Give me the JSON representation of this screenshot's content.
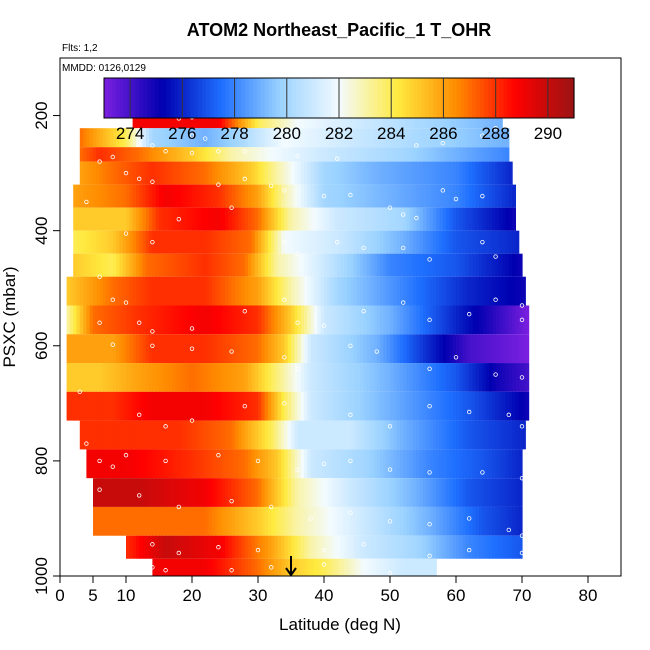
{
  "chart_data": {
    "type": "heatmap",
    "title": "ATOM2 Northeast_Pacific_1 T_OHR",
    "info_lines": [
      "Flts: 1,2",
      "MMDD: 0126,0129"
    ],
    "xlabel": "Latitude (deg N)",
    "ylabel": "PSXC (mbar)",
    "xlim": [
      0,
      85
    ],
    "ylim": [
      1000,
      100
    ],
    "x_ticks": [
      0,
      5,
      10,
      20,
      30,
      40,
      50,
      60,
      70,
      80
    ],
    "x_tick_labels": [
      "0",
      "5",
      "10",
      "20",
      "30",
      "40",
      "50",
      "60",
      "70",
      "80"
    ],
    "y_ticks": [
      200,
      400,
      600,
      800,
      1000
    ],
    "y_tick_labels": [
      "200",
      "400",
      "600",
      "800",
      "1000"
    ],
    "colorbar": {
      "range": [
        273,
        291
      ],
      "ticks": [
        274,
        276,
        278,
        280,
        282,
        284,
        286,
        288,
        290
      ],
      "tick_labels": [
        "274",
        "276",
        "278",
        "280",
        "282",
        "284",
        "286",
        "288",
        "290"
      ],
      "colors": [
        "#7b1fe0",
        "#0000b0",
        "#1e6fff",
        "#9ad2ff",
        "#f3fbff",
        "#ffea40",
        "#ff8c00",
        "#ff0000",
        "#9a1414"
      ]
    },
    "marker": {
      "x": 35,
      "label": "arrow"
    },
    "bands": [
      {
        "p_top": 190,
        "p_bot": 222,
        "x_start": 11,
        "x_end": 67,
        "knots": [
          [
            11,
            289
          ],
          [
            24,
            289
          ],
          [
            30,
            284
          ],
          [
            36,
            282
          ],
          [
            46,
            281
          ],
          [
            56,
            280
          ],
          [
            67,
            279
          ]
        ]
      },
      {
        "p_top": 222,
        "p_bot": 255,
        "x_start": 3,
        "x_end": 68,
        "knots": [
          [
            3,
            287
          ],
          [
            10,
            284
          ],
          [
            14,
            280
          ],
          [
            22,
            279
          ],
          [
            27,
            280
          ],
          [
            34,
            282
          ],
          [
            44,
            281
          ],
          [
            56,
            280
          ],
          [
            68,
            279
          ]
        ]
      },
      {
        "p_top": 255,
        "p_bot": 280,
        "x_start": 3,
        "x_end": 68,
        "knots": [
          [
            3,
            287
          ],
          [
            6,
            288
          ],
          [
            12,
            287
          ],
          [
            20,
            285
          ],
          [
            26,
            283
          ],
          [
            32,
            282
          ],
          [
            40,
            281
          ],
          [
            52,
            280
          ],
          [
            68,
            278
          ]
        ]
      },
      {
        "p_top": 280,
        "p_bot": 320,
        "x_start": 3,
        "x_end": 68.5,
        "knots": [
          [
            3,
            286
          ],
          [
            8,
            287
          ],
          [
            14,
            288
          ],
          [
            22,
            287
          ],
          [
            29,
            285
          ],
          [
            33,
            283
          ],
          [
            40,
            280
          ],
          [
            48,
            279
          ],
          [
            60,
            278
          ],
          [
            68.5,
            276
          ]
        ]
      },
      {
        "p_top": 320,
        "p_bot": 360,
        "x_start": 2,
        "x_end": 69,
        "knots": [
          [
            2,
            286
          ],
          [
            10,
            287
          ],
          [
            16,
            289
          ],
          [
            24,
            288
          ],
          [
            30,
            286
          ],
          [
            34,
            283
          ],
          [
            40,
            280
          ],
          [
            50,
            279
          ],
          [
            60,
            278
          ],
          [
            69,
            276
          ]
        ]
      },
      {
        "p_top": 360,
        "p_bot": 400,
        "x_start": 2,
        "x_end": 69,
        "knots": [
          [
            2,
            285
          ],
          [
            10,
            285
          ],
          [
            15,
            288
          ],
          [
            24,
            289
          ],
          [
            30,
            287
          ],
          [
            35,
            283
          ],
          [
            42,
            281
          ],
          [
            52,
            280
          ],
          [
            60,
            277
          ],
          [
            69,
            275
          ]
        ]
      },
      {
        "p_top": 400,
        "p_bot": 440,
        "x_start": 2,
        "x_end": 69.5,
        "knots": [
          [
            2,
            284
          ],
          [
            8,
            285
          ],
          [
            14,
            288
          ],
          [
            22,
            288
          ],
          [
            29,
            287
          ],
          [
            34,
            282
          ],
          [
            42,
            281
          ],
          [
            52,
            279
          ],
          [
            60,
            277
          ],
          [
            69.5,
            276
          ]
        ]
      },
      {
        "p_top": 440,
        "p_bot": 480,
        "x_start": 2,
        "x_end": 70,
        "knots": [
          [
            2,
            285
          ],
          [
            8,
            284
          ],
          [
            13,
            287
          ],
          [
            22,
            288
          ],
          [
            28,
            287
          ],
          [
            33,
            283
          ],
          [
            40,
            281
          ],
          [
            50,
            278
          ],
          [
            60,
            277
          ],
          [
            70,
            275
          ]
        ]
      },
      {
        "p_top": 480,
        "p_bot": 530,
        "x_start": 1,
        "x_end": 70.5,
        "knots": [
          [
            1,
            285
          ],
          [
            8,
            287
          ],
          [
            14,
            288
          ],
          [
            22,
            288
          ],
          [
            30,
            286
          ],
          [
            35,
            283
          ],
          [
            42,
            280
          ],
          [
            52,
            278
          ],
          [
            62,
            276
          ],
          [
            70.5,
            275
          ]
        ]
      },
      {
        "p_top": 530,
        "p_bot": 580,
        "x_start": 1,
        "x_end": 71,
        "knots": [
          [
            1,
            283
          ],
          [
            5,
            287
          ],
          [
            12,
            288
          ],
          [
            22,
            289
          ],
          [
            30,
            288
          ],
          [
            35,
            285
          ],
          [
            40,
            281
          ],
          [
            50,
            279
          ],
          [
            60,
            276
          ],
          [
            64,
            275
          ],
          [
            71,
            273
          ]
        ]
      },
      {
        "p_top": 580,
        "p_bot": 630,
        "x_start": 1,
        "x_end": 71,
        "knots": [
          [
            1,
            286
          ],
          [
            8,
            286
          ],
          [
            14,
            288
          ],
          [
            22,
            288
          ],
          [
            30,
            287
          ],
          [
            34,
            285
          ],
          [
            38,
            281
          ],
          [
            48,
            279
          ],
          [
            56,
            276
          ],
          [
            62,
            274
          ],
          [
            71,
            273
          ]
        ]
      },
      {
        "p_top": 630,
        "p_bot": 680,
        "x_start": 1,
        "x_end": 71,
        "knots": [
          [
            1,
            285
          ],
          [
            6,
            285
          ],
          [
            12,
            286
          ],
          [
            20,
            287
          ],
          [
            28,
            286
          ],
          [
            34,
            283
          ],
          [
            38,
            281
          ],
          [
            50,
            279
          ],
          [
            60,
            277
          ],
          [
            66,
            275
          ],
          [
            71,
            274
          ]
        ]
      },
      {
        "p_top": 680,
        "p_bot": 730,
        "x_start": 1,
        "x_end": 71,
        "knots": [
          [
            1,
            288
          ],
          [
            8,
            288
          ],
          [
            14,
            289
          ],
          [
            22,
            289
          ],
          [
            30,
            288
          ],
          [
            34,
            284
          ],
          [
            38,
            281
          ],
          [
            50,
            279
          ],
          [
            62,
            277
          ],
          [
            71,
            275
          ]
        ]
      },
      {
        "p_top": 730,
        "p_bot": 780,
        "x_start": 3,
        "x_end": 70.5,
        "knots": [
          [
            3,
            288
          ],
          [
            10,
            288
          ],
          [
            18,
            288
          ],
          [
            26,
            287
          ],
          [
            32,
            284
          ],
          [
            36,
            281
          ],
          [
            44,
            281
          ],
          [
            52,
            279
          ],
          [
            62,
            277
          ],
          [
            70.5,
            276
          ]
        ]
      },
      {
        "p_top": 780,
        "p_bot": 830,
        "x_start": 4,
        "x_end": 70,
        "knots": [
          [
            4,
            289
          ],
          [
            10,
            289
          ],
          [
            20,
            288
          ],
          [
            28,
            287
          ],
          [
            33,
            285
          ],
          [
            38,
            281
          ],
          [
            46,
            280
          ],
          [
            56,
            278
          ],
          [
            64,
            277
          ],
          [
            70,
            276
          ]
        ]
      },
      {
        "p_top": 830,
        "p_bot": 880,
        "x_start": 5,
        "x_end": 70,
        "knots": [
          [
            5,
            290
          ],
          [
            12,
            290
          ],
          [
            22,
            289
          ],
          [
            30,
            287
          ],
          [
            36,
            283
          ],
          [
            44,
            281
          ],
          [
            54,
            279
          ],
          [
            62,
            277
          ],
          [
            70,
            276
          ]
        ]
      },
      {
        "p_top": 880,
        "p_bot": 930,
        "x_start": 5,
        "x_end": 70,
        "knots": [
          [
            5,
            287
          ],
          [
            12,
            287
          ],
          [
            22,
            287
          ],
          [
            30,
            285
          ],
          [
            36,
            283
          ],
          [
            46,
            281
          ],
          [
            56,
            279
          ],
          [
            64,
            277
          ],
          [
            70,
            276
          ]
        ]
      },
      {
        "p_top": 930,
        "p_bot": 970,
        "x_start": 10,
        "x_end": 70,
        "knots": [
          [
            10,
            288
          ],
          [
            16,
            290
          ],
          [
            24,
            289
          ],
          [
            32,
            286
          ],
          [
            38,
            283
          ],
          [
            46,
            281
          ],
          [
            54,
            280
          ],
          [
            62,
            278
          ],
          [
            70,
            277
          ]
        ]
      },
      {
        "p_top": 970,
        "p_bot": 1000,
        "x_start": 14,
        "x_end": 57,
        "knots": [
          [
            14,
            289
          ],
          [
            22,
            289
          ],
          [
            30,
            287
          ],
          [
            35,
            285
          ],
          [
            40,
            284
          ],
          [
            46,
            282
          ],
          [
            52,
            281
          ],
          [
            57,
            281
          ]
        ]
      }
    ],
    "points_count_note": "",
    "points": [
      [
        18,
        205
      ],
      [
        20,
        203
      ],
      [
        26,
        198
      ],
      [
        28,
        200
      ],
      [
        32,
        196
      ],
      [
        20,
        235
      ],
      [
        22,
        240
      ],
      [
        12,
        250
      ],
      [
        14,
        252
      ],
      [
        24,
        262
      ],
      [
        16,
        262
      ],
      [
        20,
        265
      ],
      [
        28,
        262
      ],
      [
        36,
        270
      ],
      [
        42,
        275
      ],
      [
        54,
        252
      ],
      [
        58,
        248
      ],
      [
        64,
        235
      ],
      [
        66,
        222
      ],
      [
        6,
        280
      ],
      [
        8,
        272
      ],
      [
        10,
        300
      ],
      [
        12,
        310
      ],
      [
        14,
        315
      ],
      [
        24,
        320
      ],
      [
        28,
        310
      ],
      [
        32,
        322
      ],
      [
        34,
        330
      ],
      [
        40,
        340
      ],
      [
        44,
        338
      ],
      [
        50,
        360
      ],
      [
        52,
        372
      ],
      [
        54,
        378
      ],
      [
        58,
        330
      ],
      [
        60,
        345
      ],
      [
        64,
        340
      ],
      [
        4,
        350
      ],
      [
        10,
        405
      ],
      [
        14,
        420
      ],
      [
        18,
        380
      ],
      [
        26,
        360
      ],
      [
        34,
        420
      ],
      [
        36,
        440
      ],
      [
        42,
        420
      ],
      [
        46,
        430
      ],
      [
        52,
        430
      ],
      [
        56,
        450
      ],
      [
        64,
        420
      ],
      [
        66,
        445
      ],
      [
        6,
        480
      ],
      [
        8,
        520
      ],
      [
        10,
        525
      ],
      [
        12,
        560
      ],
      [
        14,
        575
      ],
      [
        20,
        570
      ],
      [
        28,
        540
      ],
      [
        34,
        520
      ],
      [
        36,
        560
      ],
      [
        40,
        565
      ],
      [
        46,
        540
      ],
      [
        52,
        525
      ],
      [
        56,
        555
      ],
      [
        62,
        545
      ],
      [
        66,
        520
      ],
      [
        70,
        530
      ],
      [
        70,
        555
      ],
      [
        6,
        560
      ],
      [
        8,
        598
      ],
      [
        14,
        600
      ],
      [
        20,
        605
      ],
      [
        26,
        610
      ],
      [
        34,
        620
      ],
      [
        36,
        640
      ],
      [
        44,
        600
      ],
      [
        48,
        610
      ],
      [
        56,
        640
      ],
      [
        60,
        620
      ],
      [
        66,
        650
      ],
      [
        70,
        655
      ],
      [
        3,
        680
      ],
      [
        12,
        720
      ],
      [
        16,
        740
      ],
      [
        20,
        730
      ],
      [
        28,
        705
      ],
      [
        34,
        700
      ],
      [
        44,
        720
      ],
      [
        50,
        740
      ],
      [
        56,
        705
      ],
      [
        62,
        715
      ],
      [
        68,
        720
      ],
      [
        70,
        740
      ],
      [
        4,
        770
      ],
      [
        6,
        800
      ],
      [
        8,
        810
      ],
      [
        10,
        790
      ],
      [
        16,
        800
      ],
      [
        24,
        790
      ],
      [
        30,
        800
      ],
      [
        36,
        815
      ],
      [
        40,
        805
      ],
      [
        44,
        800
      ],
      [
        50,
        815
      ],
      [
        56,
        820
      ],
      [
        64,
        820
      ],
      [
        70,
        830
      ],
      [
        6,
        850
      ],
      [
        12,
        860
      ],
      [
        18,
        880
      ],
      [
        26,
        870
      ],
      [
        32,
        880
      ],
      [
        38,
        900
      ],
      [
        44,
        890
      ],
      [
        50,
        905
      ],
      [
        56,
        910
      ],
      [
        62,
        900
      ],
      [
        68,
        920
      ],
      [
        70,
        930
      ],
      [
        14,
        945
      ],
      [
        18,
        960
      ],
      [
        24,
        950
      ],
      [
        30,
        955
      ],
      [
        40,
        955
      ],
      [
        46,
        945
      ],
      [
        56,
        965
      ],
      [
        62,
        955
      ],
      [
        70,
        960
      ],
      [
        14,
        985
      ],
      [
        16,
        990
      ],
      [
        26,
        990
      ],
      [
        32,
        985
      ],
      [
        40,
        980
      ],
      [
        50,
        995
      ]
    ]
  }
}
